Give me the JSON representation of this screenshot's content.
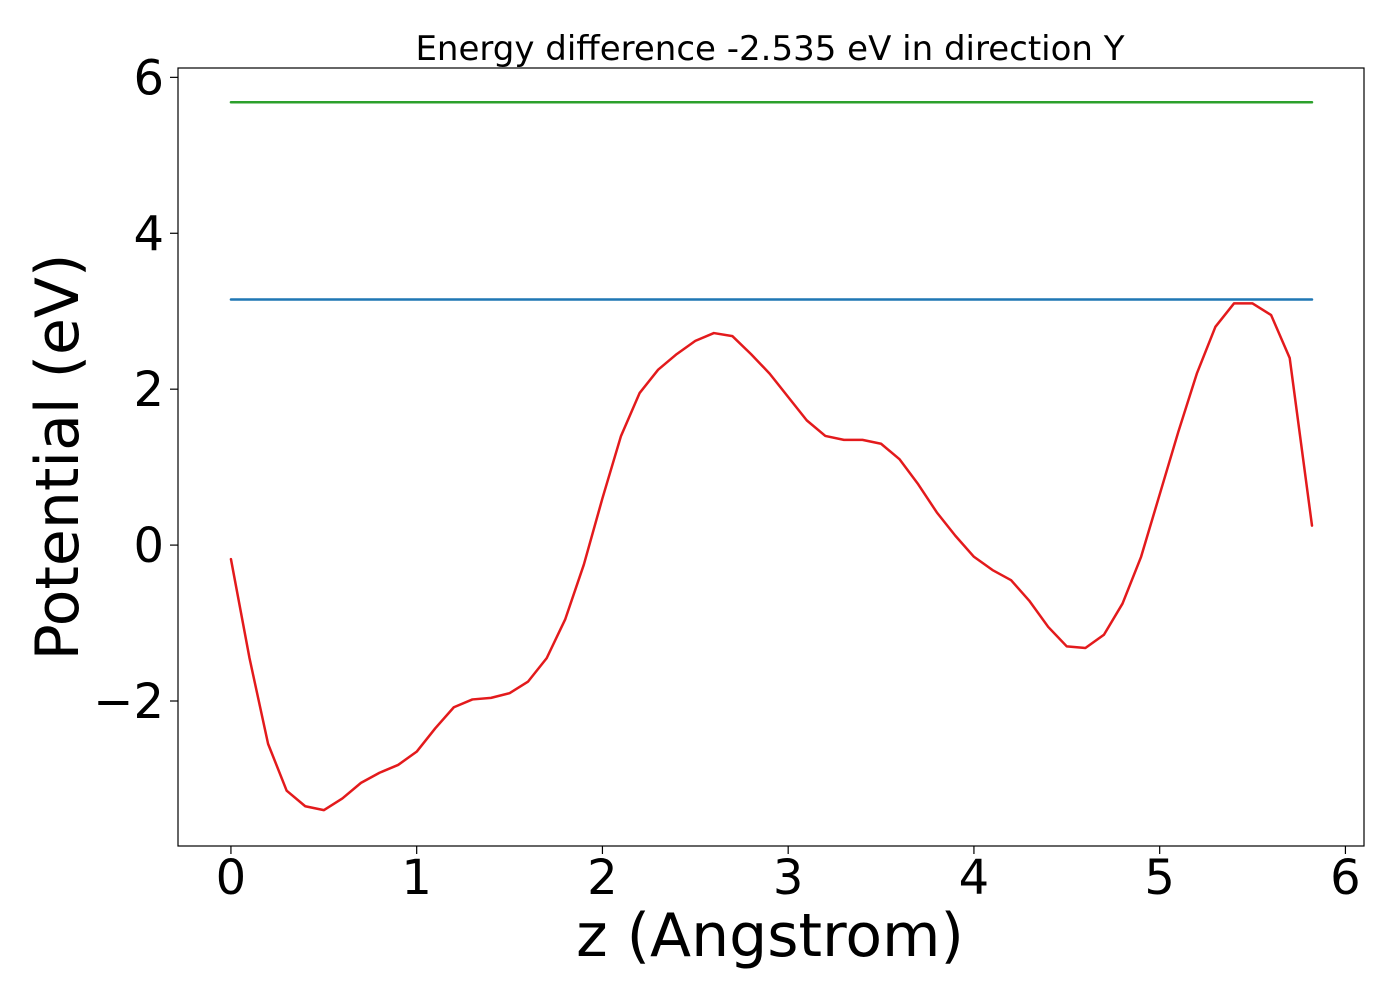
{
  "chart_data": {
    "type": "line",
    "title": "Energy difference -2.535 eV in direction Y",
    "xlabel": "z (Angstrom)",
    "ylabel": "Potential (eV)",
    "xlim": [
      -0.285,
      6.1
    ],
    "ylim": [
      -3.86,
      6.12
    ],
    "grid": false,
    "x_ticks": [
      0,
      1,
      2,
      3,
      4,
      5,
      6
    ],
    "x_tick_labels": [
      "0",
      "1",
      "2",
      "3",
      "4",
      "5",
      "6"
    ],
    "y_ticks": [
      -2,
      0,
      2,
      4,
      6
    ],
    "y_tick_labels": [
      "−2",
      "0",
      "2",
      "4",
      "6"
    ],
    "series": [
      {
        "color": "#2ca02c",
        "x": [
          0,
          5.82
        ],
        "y": [
          5.68,
          5.68
        ]
      },
      {
        "color": "#1f77b4",
        "x": [
          0,
          5.82
        ],
        "y": [
          3.15,
          3.15
        ]
      },
      {
        "color": "#e31a1c",
        "x": [
          0.0,
          0.1,
          0.2,
          0.3,
          0.4,
          0.5,
          0.6,
          0.7,
          0.8,
          0.9,
          1.0,
          1.1,
          1.2,
          1.3,
          1.4,
          1.5,
          1.6,
          1.7,
          1.8,
          1.9,
          2.0,
          2.1,
          2.2,
          2.3,
          2.4,
          2.5,
          2.6,
          2.7,
          2.8,
          2.9,
          3.0,
          3.1,
          3.2,
          3.3,
          3.4,
          3.5,
          3.6,
          3.7,
          3.8,
          3.9,
          4.0,
          4.1,
          4.2,
          4.3,
          4.4,
          4.5,
          4.6,
          4.7,
          4.8,
          4.9,
          5.0,
          5.1,
          5.2,
          5.3,
          5.4,
          5.5,
          5.6,
          5.7,
          5.82
        ],
        "y": [
          -0.18,
          -1.45,
          -2.55,
          -3.15,
          -3.35,
          -3.4,
          -3.25,
          -3.05,
          -2.92,
          -2.82,
          -2.65,
          -2.35,
          -2.08,
          -1.98,
          -1.96,
          -1.9,
          -1.75,
          -1.45,
          -0.95,
          -0.25,
          0.6,
          1.4,
          1.95,
          2.25,
          2.45,
          2.62,
          2.72,
          2.68,
          2.45,
          2.2,
          1.9,
          1.6,
          1.4,
          1.35,
          1.35,
          1.3,
          1.1,
          0.78,
          0.42,
          0.12,
          -0.15,
          -0.32,
          -0.45,
          -0.72,
          -1.05,
          -1.3,
          -1.32,
          -1.15,
          -0.75,
          -0.15,
          0.65,
          1.45,
          2.2,
          2.8,
          3.1,
          3.1,
          2.95,
          2.4,
          0.25
        ]
      }
    ]
  }
}
